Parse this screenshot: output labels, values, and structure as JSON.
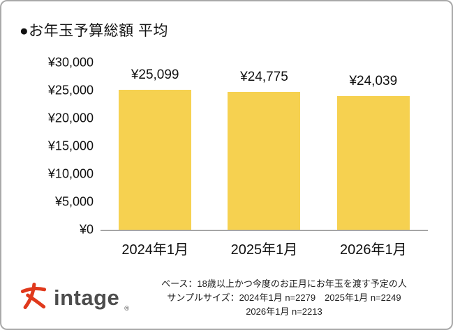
{
  "header": {
    "title": "●お年玉予算総額 平均"
  },
  "chart_data": {
    "type": "bar",
    "title": "お年玉予算総額 平均",
    "categories": [
      "2024年1月",
      "2025年1月",
      "2026年1月"
    ],
    "values": [
      25099,
      24775,
      24039
    ],
    "value_labels": [
      "¥25,099",
      "¥24,775",
      "¥24,039"
    ],
    "ylim": [
      0,
      30000
    ],
    "ytick_values": [
      0,
      5000,
      10000,
      15000,
      20000,
      25000,
      30000
    ],
    "ytick_labels": [
      "¥0",
      "¥5,000",
      "¥10,000",
      "¥15,000",
      "¥20,000",
      "¥25,000",
      "¥30,000"
    ],
    "bar_color": "#F6D150",
    "axis_color": "#a6a6a6",
    "grid": false,
    "legend": false
  },
  "footer": {
    "logo_text": "intage",
    "logo_reg": "®",
    "logo_color": "#e0391c",
    "note_line1": "ベース：18歳以上かつ今度のお正月にお年玉を渡す予定の人",
    "note_line2": "サンプルサイズ：2024年1月 n=2279　2025年1月 n=2249",
    "note_line3": "2026年1月 n=2213"
  }
}
